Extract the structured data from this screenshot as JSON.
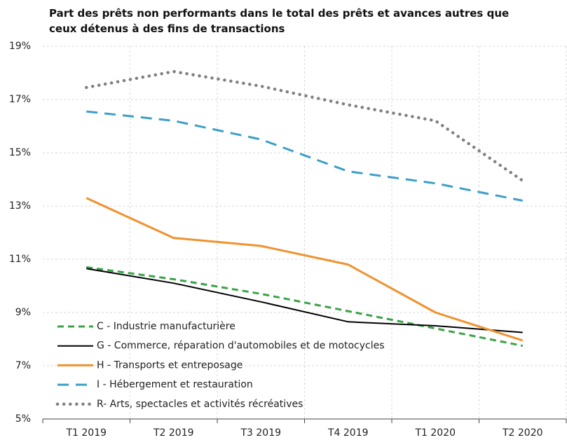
{
  "chart_data": {
    "type": "line",
    "title": "Part des prêts non performants dans le total des prêts et avances autres que ceux détenus à des fins de transactions",
    "categories": [
      "T1 2019",
      "T2 2019",
      "T3 2019",
      "T4 2019",
      "T1 2020",
      "T2 2020"
    ],
    "series": [
      {
        "name": "C - Industrie manufacturière",
        "color": "#3aa346",
        "dash": "dashed",
        "values": [
          10.7,
          10.25,
          9.7,
          9.05,
          8.4,
          7.75
        ]
      },
      {
        "name": "G - Commerce, réparation d'automobiles et de motocycles",
        "color": "#000000",
        "dash": "solid",
        "values": [
          10.65,
          10.1,
          9.4,
          8.65,
          8.5,
          8.25
        ]
      },
      {
        "name": "H - Transports et entreposage",
        "color": "#f0922e",
        "dash": "solid",
        "values": [
          13.3,
          11.8,
          11.5,
          10.8,
          9.0,
          7.95
        ]
      },
      {
        "name": "I - Hébergement et restauration",
        "color": "#3c9fc8",
        "dash": "longdash",
        "values": [
          16.55,
          16.2,
          15.5,
          14.3,
          13.85,
          13.2
        ]
      },
      {
        "name": "R- Arts, spectacles et activités récréatives",
        "color": "#808080",
        "dash": "dotted",
        "values": [
          17.45,
          18.05,
          17.5,
          16.8,
          16.2,
          13.95
        ]
      }
    ],
    "ylim": [
      5,
      19
    ],
    "yticks": [
      {
        "value": 5,
        "label": "5%"
      },
      {
        "value": 7,
        "label": "7%"
      },
      {
        "value": 9,
        "label": "9%"
      },
      {
        "value": 11,
        "label": "11%"
      },
      {
        "value": 13,
        "label": "13%"
      },
      {
        "value": 15,
        "label": "15%"
      },
      {
        "value": 17,
        "label": "17%"
      },
      {
        "value": 19,
        "label": "19%"
      }
    ],
    "grid": true,
    "legend": "lower-left"
  }
}
